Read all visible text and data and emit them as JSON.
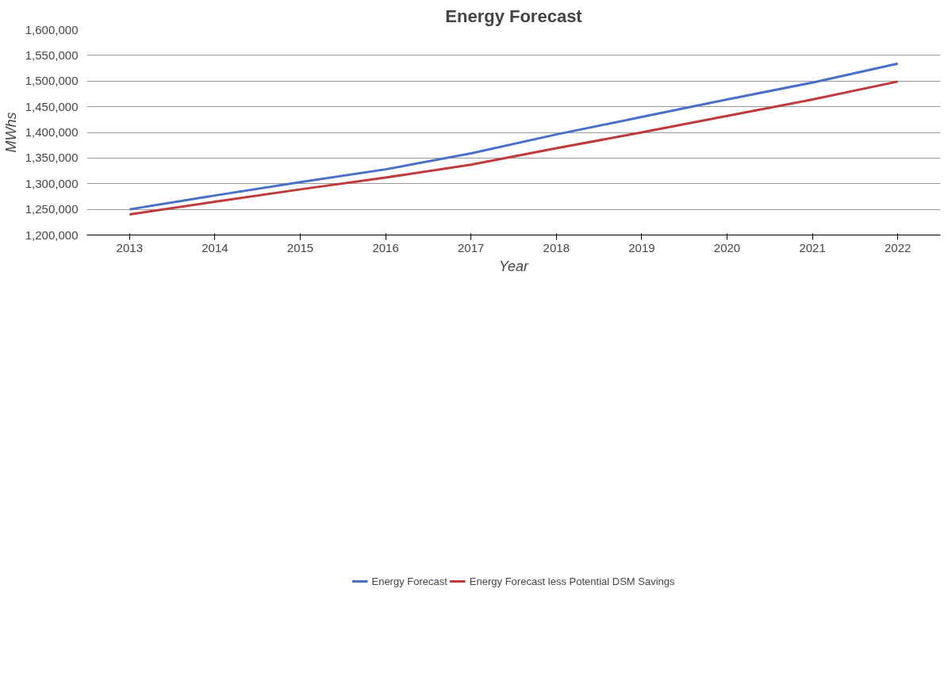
{
  "chart_data": {
    "type": "line",
    "title": "Energy Forecast",
    "xlabel": "Year",
    "ylabel": "MWhs",
    "categories": [
      "2013",
      "2014",
      "2015",
      "2016",
      "2017",
      "2018",
      "2019",
      "2020",
      "2021",
      "2022"
    ],
    "series": [
      {
        "name": "Energy Forecast",
        "color": "#4a6fc9",
        "values": [
          1250000,
          1277000,
          1303000,
          1328000,
          1359000,
          1396000,
          1430000,
          1464000,
          1497000,
          1534000
        ]
      },
      {
        "name": "Energy Forecast less Potential DSM Savings",
        "color": "#c0393b",
        "values": [
          1240000,
          1265000,
          1289000,
          1312000,
          1337000,
          1369000,
          1400000,
          1432000,
          1464000,
          1499000
        ]
      }
    ],
    "ylim": [
      1200000,
      1600000
    ],
    "yticks": [
      {
        "value": 1200000,
        "label": "1,200,000"
      },
      {
        "value": 1250000,
        "label": "1,250,000"
      },
      {
        "value": 1300000,
        "label": "1,300,000"
      },
      {
        "value": 1350000,
        "label": "1,350,000"
      },
      {
        "value": 1400000,
        "label": "1,400,000"
      },
      {
        "value": 1450000,
        "label": "1,450,000"
      },
      {
        "value": 1500000,
        "label": "1,500,000"
      },
      {
        "value": 1550000,
        "label": "1,550,000"
      },
      {
        "value": 1600000,
        "label": "1,600,000"
      }
    ],
    "grid": "y",
    "legend": "bottom",
    "marker": "none",
    "line_style": "solid"
  }
}
